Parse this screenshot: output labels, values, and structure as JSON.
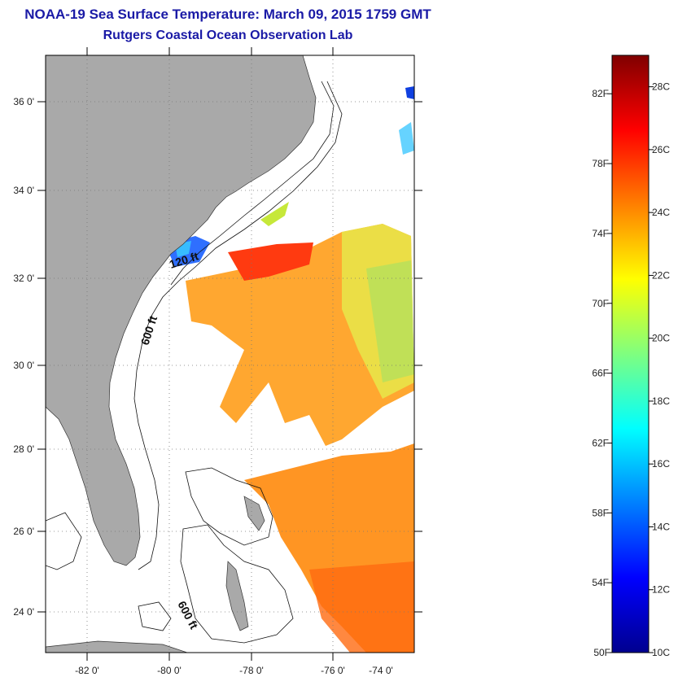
{
  "header": {
    "title": "NOAA-19 Sea Surface Temperature:  March 09, 2015 1759 GMT",
    "subtitle": "Rutgers Coastal Ocean Observation Lab"
  },
  "map": {
    "lon_labels": [
      "-82 0'",
      "-80 0'",
      "-78 0'",
      "-76 0'",
      "-74 0'"
    ],
    "lat_labels": [
      "36 0'",
      "34 0'",
      "32 0'",
      "30 0'",
      "28 0'",
      "26 0'",
      "24 0'"
    ],
    "contour_labels": [
      "120 ft",
      "600 ft",
      "600 ft"
    ],
    "colors": {
      "land": "#a9a9a9",
      "water_nodata": "#ffffff",
      "frame": "#000000"
    }
  },
  "colorbar": {
    "fahrenheit_labels": [
      "82F",
      "78F",
      "74F",
      "70F",
      "66F",
      "62F",
      "58F",
      "54F",
      "50F"
    ],
    "celsius_labels": [
      "28C",
      "26C",
      "24C",
      "22C",
      "20C",
      "18C",
      "16C",
      "14C",
      "12C",
      "10C"
    ],
    "range_c": [
      10,
      29
    ],
    "colormap": "jet"
  }
}
